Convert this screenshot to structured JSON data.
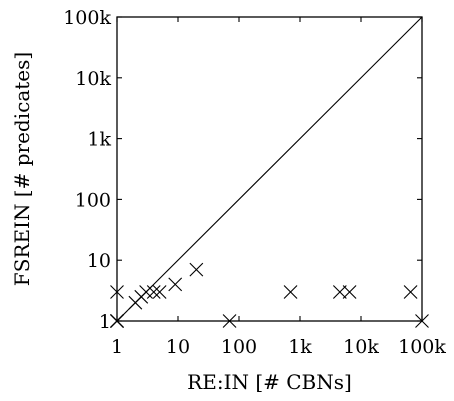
{
  "chart_data": {
    "type": "scatter",
    "xlabel": "RE:IN [# CBNs]",
    "ylabel": "FSREIN [# predicates]",
    "xscale": "log",
    "yscale": "log",
    "xlim": [
      1,
      100000
    ],
    "ylim": [
      1,
      100000
    ],
    "grid": false,
    "diagonal": "y = x",
    "xticks": [
      1,
      10,
      100,
      1000,
      10000,
      100000
    ],
    "xtick_labels": [
      "1",
      "10",
      "100",
      "1k",
      "10k",
      "100k"
    ],
    "yticks": [
      1,
      10,
      100,
      1000,
      10000,
      100000
    ],
    "ytick_labels": [
      "1",
      "10",
      "100",
      "1k",
      "10k",
      "100k"
    ],
    "marker": "x",
    "points": [
      {
        "x": 1,
        "y": 1
      },
      {
        "x": 1,
        "y": 1
      },
      {
        "x": 1,
        "y": 1
      },
      {
        "x": 1,
        "y": 1
      },
      {
        "x": 1,
        "y": 1
      },
      {
        "x": 1,
        "y": 3
      },
      {
        "x": 2,
        "y": 2
      },
      {
        "x": 2.5,
        "y": 2.5
      },
      {
        "x": 3,
        "y": 3
      },
      {
        "x": 4,
        "y": 3
      },
      {
        "x": 5,
        "y": 3
      },
      {
        "x": 9,
        "y": 4
      },
      {
        "x": 20,
        "y": 7
      },
      {
        "x": 70,
        "y": 1
      },
      {
        "x": 700,
        "y": 3
      },
      {
        "x": 4500,
        "y": 3
      },
      {
        "x": 6500,
        "y": 3
      },
      {
        "x": 65000,
        "y": 3
      },
      {
        "x": 100000,
        "y": 1
      }
    ]
  }
}
